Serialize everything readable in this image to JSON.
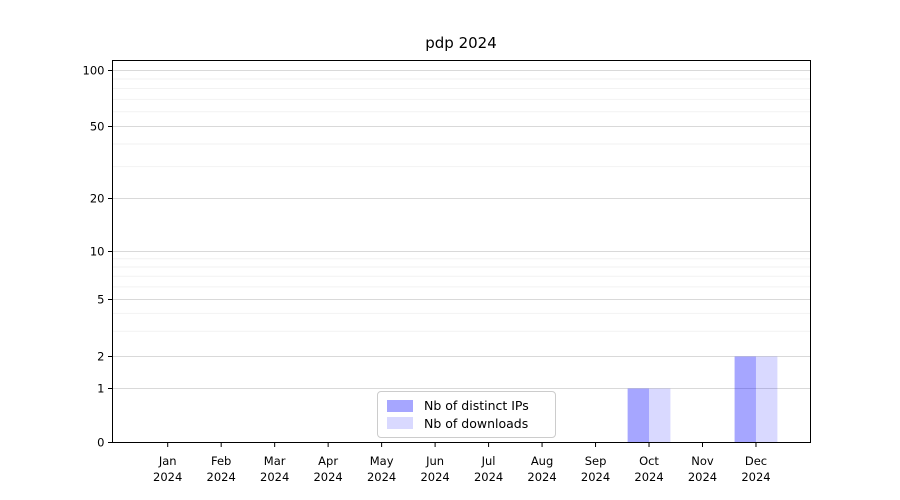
{
  "title": "pdp 2024",
  "chart_data": {
    "type": "bar",
    "title": "pdp 2024",
    "categories": [
      "Jan",
      "Feb",
      "Mar",
      "Apr",
      "May",
      "Jun",
      "Jul",
      "Aug",
      "Sep",
      "Oct",
      "Nov",
      "Dec"
    ],
    "x_year": "2024",
    "series": [
      {
        "name": "Nb of distinct IPs",
        "color": "rgba(0,0,255,0.35)",
        "values": [
          0,
          0,
          0,
          0,
          0,
          0,
          0,
          0,
          0,
          1,
          0,
          2
        ]
      },
      {
        "name": "Nb of downloads",
        "color": "rgba(0,0,255,0.15)",
        "values": [
          0,
          0,
          0,
          0,
          0,
          0,
          0,
          0,
          0,
          1,
          0,
          2
        ]
      }
    ],
    "y_axis": {
      "scale": "symlog",
      "major_ticks": [
        0,
        1,
        2,
        5,
        10,
        20,
        50,
        100
      ],
      "minor_ticks": [
        3,
        4,
        6,
        7,
        8,
        9,
        30,
        40,
        60,
        70,
        80,
        90
      ]
    },
    "grid": {
      "major_color": "#d9d9d9",
      "minor_color": "#f2f2f2"
    },
    "legend_position": "lower center",
    "bar_width": 0.4
  }
}
